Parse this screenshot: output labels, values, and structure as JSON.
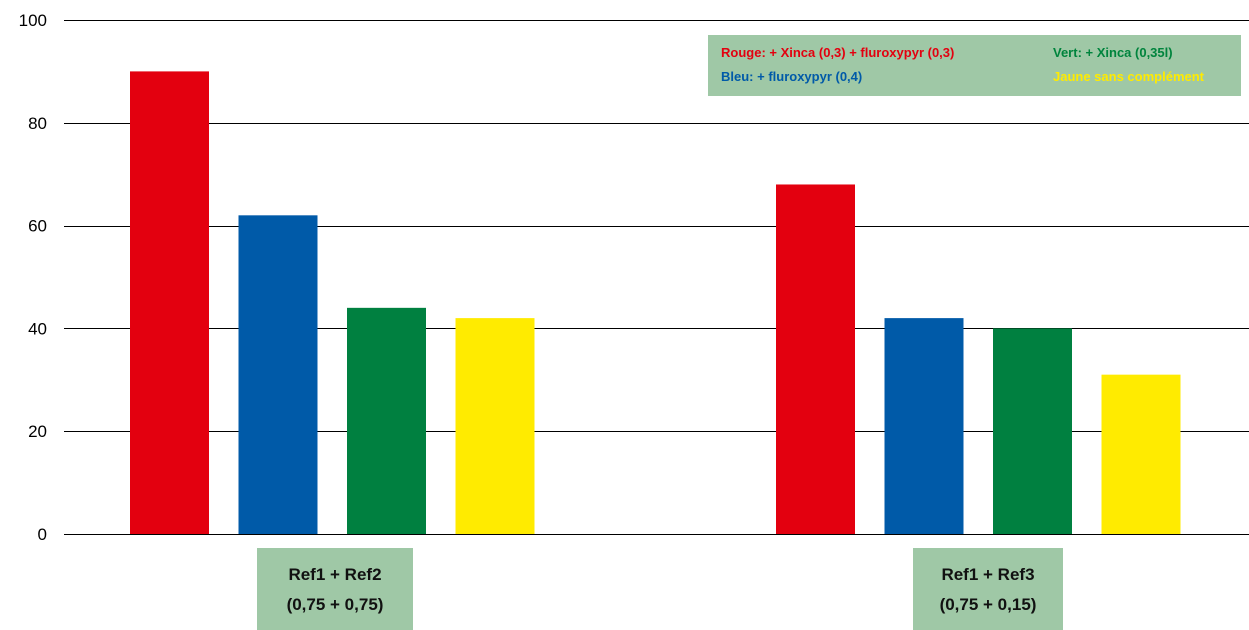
{
  "chart_data": {
    "type": "bar",
    "categories": [
      "Ref1 + Ref2 (0,75 + 0,75)",
      "Ref1 + Ref3 (0,75 + 0,15)"
    ],
    "series": [
      {
        "values": [
          90,
          68
        ],
        "color": "#e3000f"
      },
      {
        "values": [
          62,
          42
        ],
        "color": "#005aa8"
      },
      {
        "values": [
          44,
          40
        ],
        "color": "#008040"
      },
      {
        "values": [
          42,
          31
        ],
        "color": "#ffeb00"
      }
    ],
    "ylim": [
      0,
      100
    ],
    "yticks": [
      "0",
      "20",
      "40",
      "60",
      "80",
      "100"
    ],
    "grid": true,
    "legend_position": "top-right",
    "legend": [
      {
        "label": "Rouge: + Xinca (0,3) + fluroxypyr (0,3)",
        "color": "#e3000f"
      },
      {
        "label": "Vert: + Xinca (0,35l)",
        "color": "#00843d"
      },
      {
        "label": "Bleu: + fluroxypyr (0,4)",
        "color": "#005aa8"
      },
      {
        "label": "Jaune sans complément",
        "color": "#ffeb00"
      }
    ],
    "group_labels": [
      {
        "line1": "Ref1 + Ref2",
        "line2": "(0,75 + 0,75)"
      },
      {
        "line1": "Ref1 + Ref3",
        "line2": "(0,75 + 0,15)"
      }
    ],
    "label_background": "#9fc8a6"
  }
}
